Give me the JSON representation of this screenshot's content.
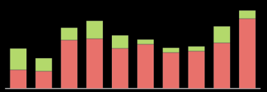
{
  "chart_data": {
    "type": "bar",
    "stacked": true,
    "tick_labels": false,
    "grid": false,
    "categories": [
      null,
      null,
      null,
      null,
      null,
      null,
      null,
      null,
      null,
      null
    ],
    "series": [
      {
        "color": "#e8716b",
        "values": [
          27,
          25,
          70,
          72,
          58,
          64,
          52,
          54,
          66,
          101
        ]
      },
      {
        "color": "#b3d96b",
        "values": [
          31,
          19,
          18,
          26,
          19,
          7,
          7,
          7,
          24,
          12
        ]
      }
    ],
    "ylim": [
      0,
      120
    ],
    "yticks": [
      0,
      120
    ]
  }
}
